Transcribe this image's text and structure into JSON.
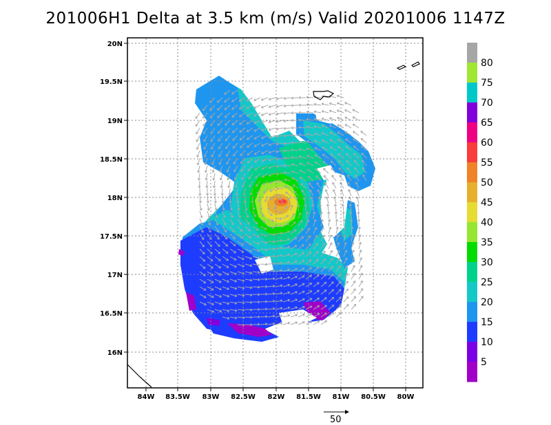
{
  "title": "201006H1  Delta at 3.5 km (m/s) Valid 20201006  1147Z",
  "chart_data": {
    "type": "heatmap",
    "x_ticks": [
      "84W",
      "83.5W",
      "83W",
      "82.5W",
      "82W",
      "81.5W",
      "81W",
      "80.5W",
      "80W"
    ],
    "y_ticks": [
      "20N",
      "19.5N",
      "19N",
      "18.5N",
      "18N",
      "17.5N",
      "17N",
      "16.5N",
      "16N"
    ],
    "colorbar_labels": [
      "80",
      "75",
      "70",
      "65",
      "60",
      "55",
      "50",
      "45",
      "40",
      "35",
      "30",
      "25",
      "20",
      "15",
      "10",
      "5"
    ],
    "colorbar_colors": [
      "#a6a6a6",
      "#a0e632",
      "#00c8c8",
      "#8200dc",
      "#f00082",
      "#fa3c3c",
      "#f08228",
      "#e6af2d",
      "#e6dc32",
      "#96e632",
      "#00dc00",
      "#00d28c",
      "#14c8c8",
      "#1e96f0",
      "#1e3cff",
      "#7a00e6",
      "#a000c8"
    ],
    "vector_reference": "50",
    "grid": true
  }
}
